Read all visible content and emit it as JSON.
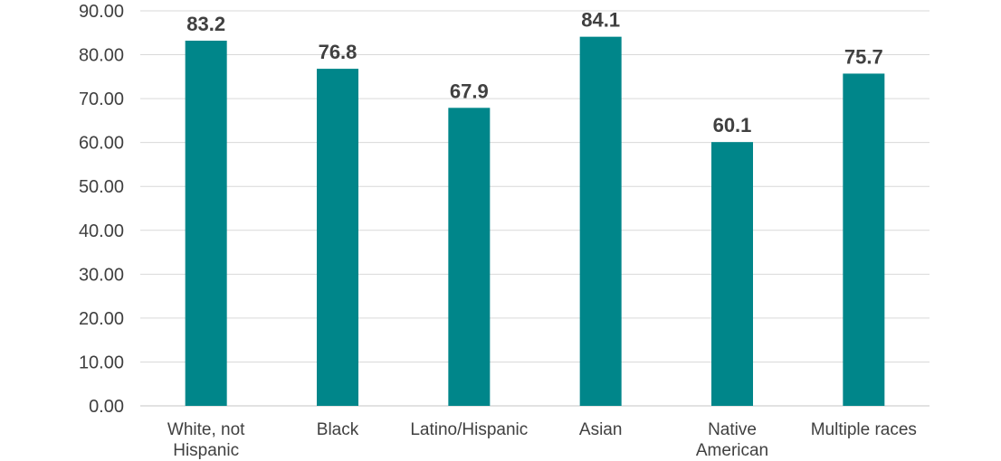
{
  "chart_data": {
    "type": "bar",
    "categories": [
      [
        "White, not",
        "Hispanic"
      ],
      [
        "Black"
      ],
      [
        "Latino/Hispanic"
      ],
      [
        "Asian"
      ],
      [
        "Native",
        "American"
      ],
      [
        "Multiple races"
      ]
    ],
    "values": [
      83.2,
      76.8,
      67.9,
      84.1,
      60.1,
      75.7
    ],
    "value_labels": [
      "83.2",
      "76.8",
      "67.9",
      "84.1",
      "60.1",
      "75.7"
    ],
    "y_ticks": [
      "0.00",
      "10.00",
      "20.00",
      "30.00",
      "40.00",
      "50.00",
      "60.00",
      "70.00",
      "80.00",
      "90.00"
    ],
    "ylim": [
      0,
      90
    ],
    "grid": true,
    "legend": "none",
    "bar_color": "#00868A",
    "grid_color": "#D9D9D9",
    "text_color": "#404040"
  }
}
